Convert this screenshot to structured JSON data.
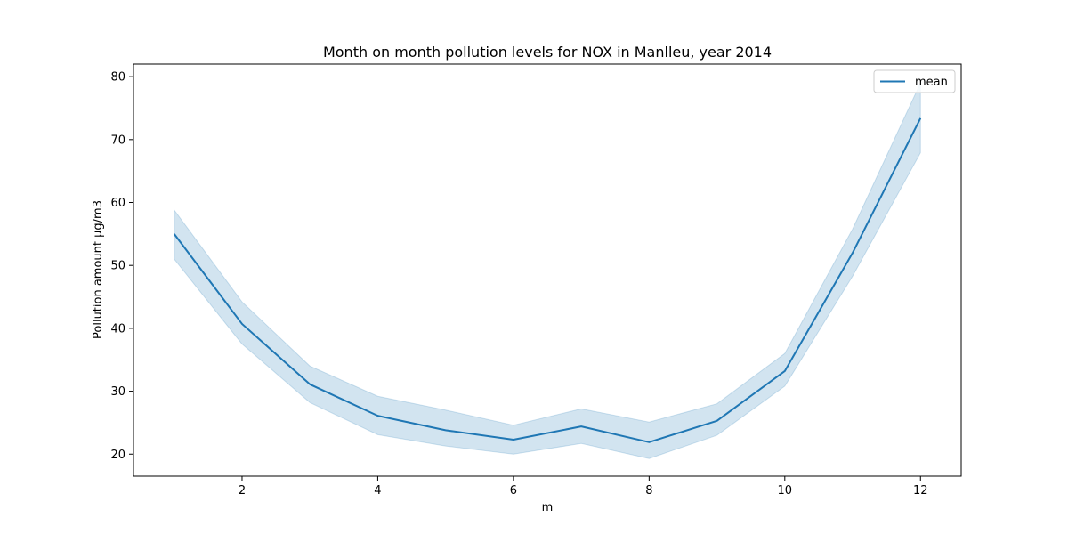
{
  "chart_data": {
    "type": "line",
    "title": "Month on month pollution levels for NOX in Manlleu, year 2014",
    "xlabel": "m",
    "ylabel": "Pollution amount µg/m3",
    "xlim": [
      0.4,
      12.6
    ],
    "ylim": [
      16.5,
      82.0
    ],
    "xticks": [
      2,
      4,
      6,
      8,
      10,
      12
    ],
    "yticks": [
      20,
      30,
      40,
      50,
      60,
      70,
      80
    ],
    "grid": false,
    "legend_position": "top-right",
    "x": [
      1,
      2,
      3,
      4,
      5,
      6,
      7,
      8,
      9,
      10,
      11,
      12
    ],
    "series": [
      {
        "name": "mean",
        "color": "#1f77b4",
        "values": [
          55.0,
          40.7,
          31.1,
          26.1,
          23.8,
          22.3,
          24.4,
          21.9,
          25.3,
          33.2,
          52.0,
          73.4
        ],
        "lower": [
          51.0,
          37.5,
          28.2,
          23.1,
          21.3,
          20.0,
          21.7,
          19.3,
          23.0,
          30.8,
          48.3,
          67.9
        ],
        "upper": [
          58.8,
          44.2,
          34.0,
          29.2,
          27.0,
          24.6,
          27.2,
          25.1,
          28.0,
          36.0,
          55.8,
          79.0
        ]
      }
    ],
    "band_color": "#1f77b4"
  }
}
